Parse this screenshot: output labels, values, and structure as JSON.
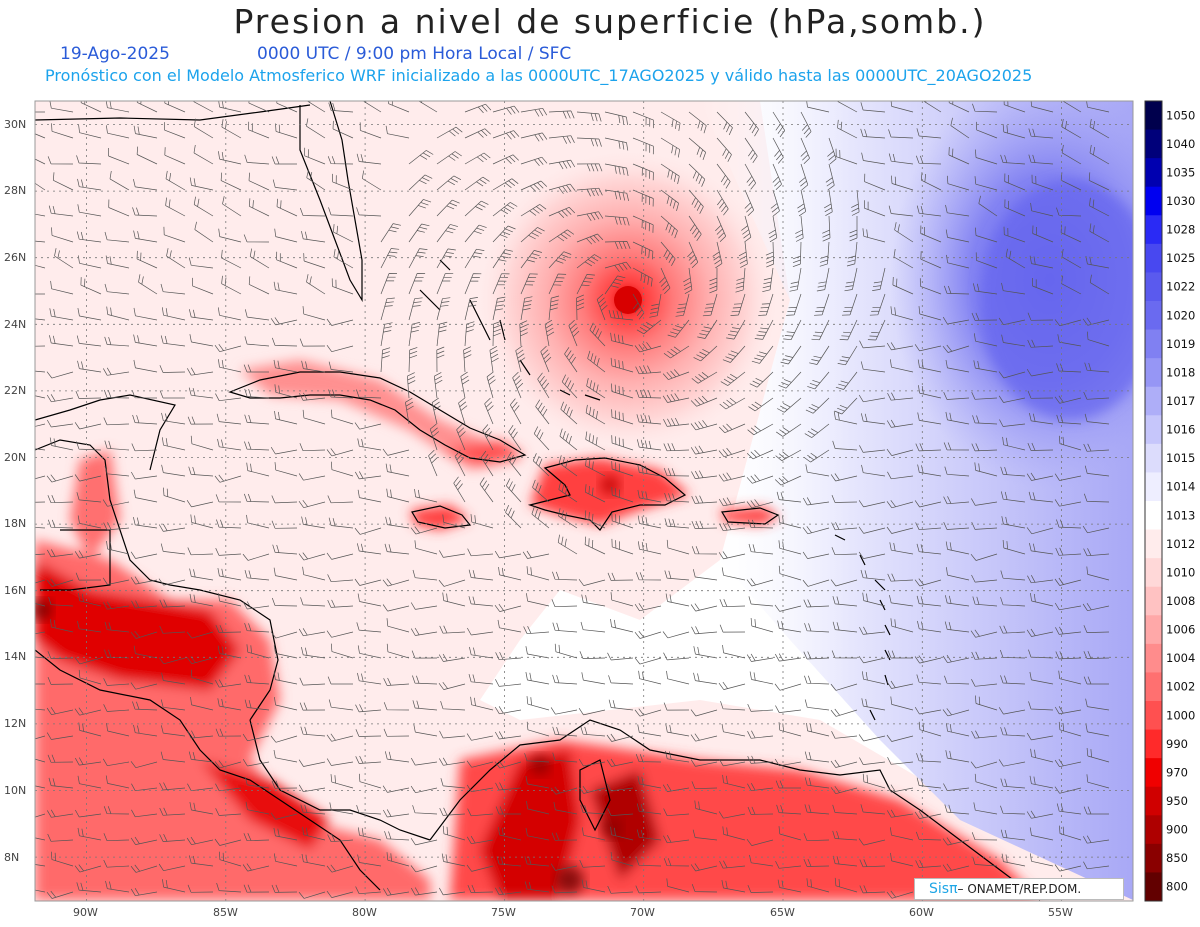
{
  "header": {
    "title": "Presion a nivel de superficie (hPa,somb.)",
    "date": "19-Ago-2025",
    "time": "0000 UTC / 9:00 pm Hora Local / SFC",
    "subtitle": "Pronóstico con el Modelo Atmosferico WRF inicializado a las 0000UTC_17AGO2025 y válido hasta las  0000UTC_20AGO2025"
  },
  "map": {
    "lat_labels": [
      "30N",
      "28N",
      "26N",
      "24N",
      "22N",
      "20N",
      "18N",
      "16N",
      "14N",
      "12N",
      "10N",
      "8N"
    ],
    "lon_labels": [
      "90W",
      "85W",
      "80W",
      "75W",
      "70W",
      "65W",
      "60W",
      "55W"
    ]
  },
  "colorbar": {
    "levels": [
      "1050",
      "1040",
      "1035",
      "1030",
      "1028",
      "1025",
      "1022",
      "1020",
      "1019",
      "1018",
      "1017",
      "1016",
      "1015",
      "1014",
      "1013",
      "1012",
      "1010",
      "1008",
      "1006",
      "1004",
      "1002",
      "1000",
      "990",
      "970",
      "950",
      "900",
      "850",
      "800"
    ],
    "colors": [
      "#00004d",
      "#00007a",
      "#0000b0",
      "#0000f0",
      "#2a2af5",
      "#4848f0",
      "#5a5aee",
      "#6a6af0",
      "#8080f2",
      "#9696f5",
      "#aeaef8",
      "#c6c6fb",
      "#dcdcfc",
      "#eeeeff",
      "#ffffff",
      "#ffecec",
      "#ffd8d8",
      "#ffc2c2",
      "#ffa8a8",
      "#ff8c8c",
      "#ff7070",
      "#ff5050",
      "#ff2a2a",
      "#f00000",
      "#d00000",
      "#ae0000",
      "#8a0000",
      "#620000"
    ]
  },
  "logo": {
    "sis": "Sisπ",
    "text": "– ONAMET/REP.DOM."
  }
}
